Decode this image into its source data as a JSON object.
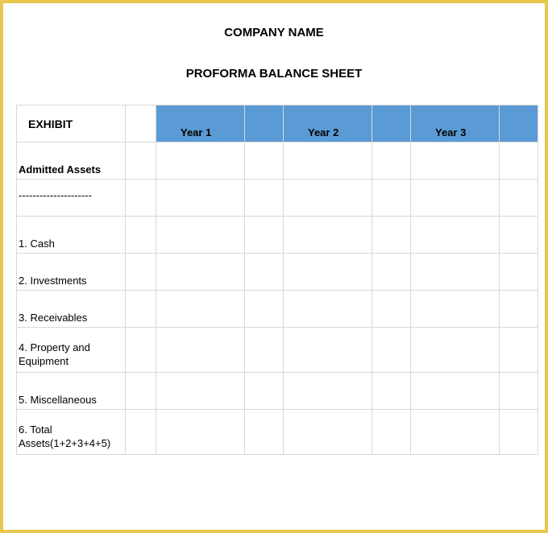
{
  "header": {
    "company": "COMPANY NAME",
    "subtitle": "PROFORMA BALANCE SHEET"
  },
  "table": {
    "exhibit_label": "EXHIBIT",
    "year_headers": [
      "Year 1",
      "Year 2",
      "Year 3"
    ],
    "header_bg": "#5b9bd5",
    "grid_color": "#d9d9d9",
    "section_label": "Admitted Assets",
    "dashes": "---------------------",
    "rows": [
      {
        "label": "1.   Cash"
      },
      {
        "label": "2.   Investments"
      },
      {
        "label": "3.   Receivables"
      },
      {
        "label": "4.   Property and Equipment",
        "tall": true
      },
      {
        "label": "5.  Miscellaneous"
      },
      {
        "label": "6.  Total Assets(1+2+3+4+5)",
        "tall": true
      }
    ],
    "frame_border_color": "#e6c84f"
  }
}
